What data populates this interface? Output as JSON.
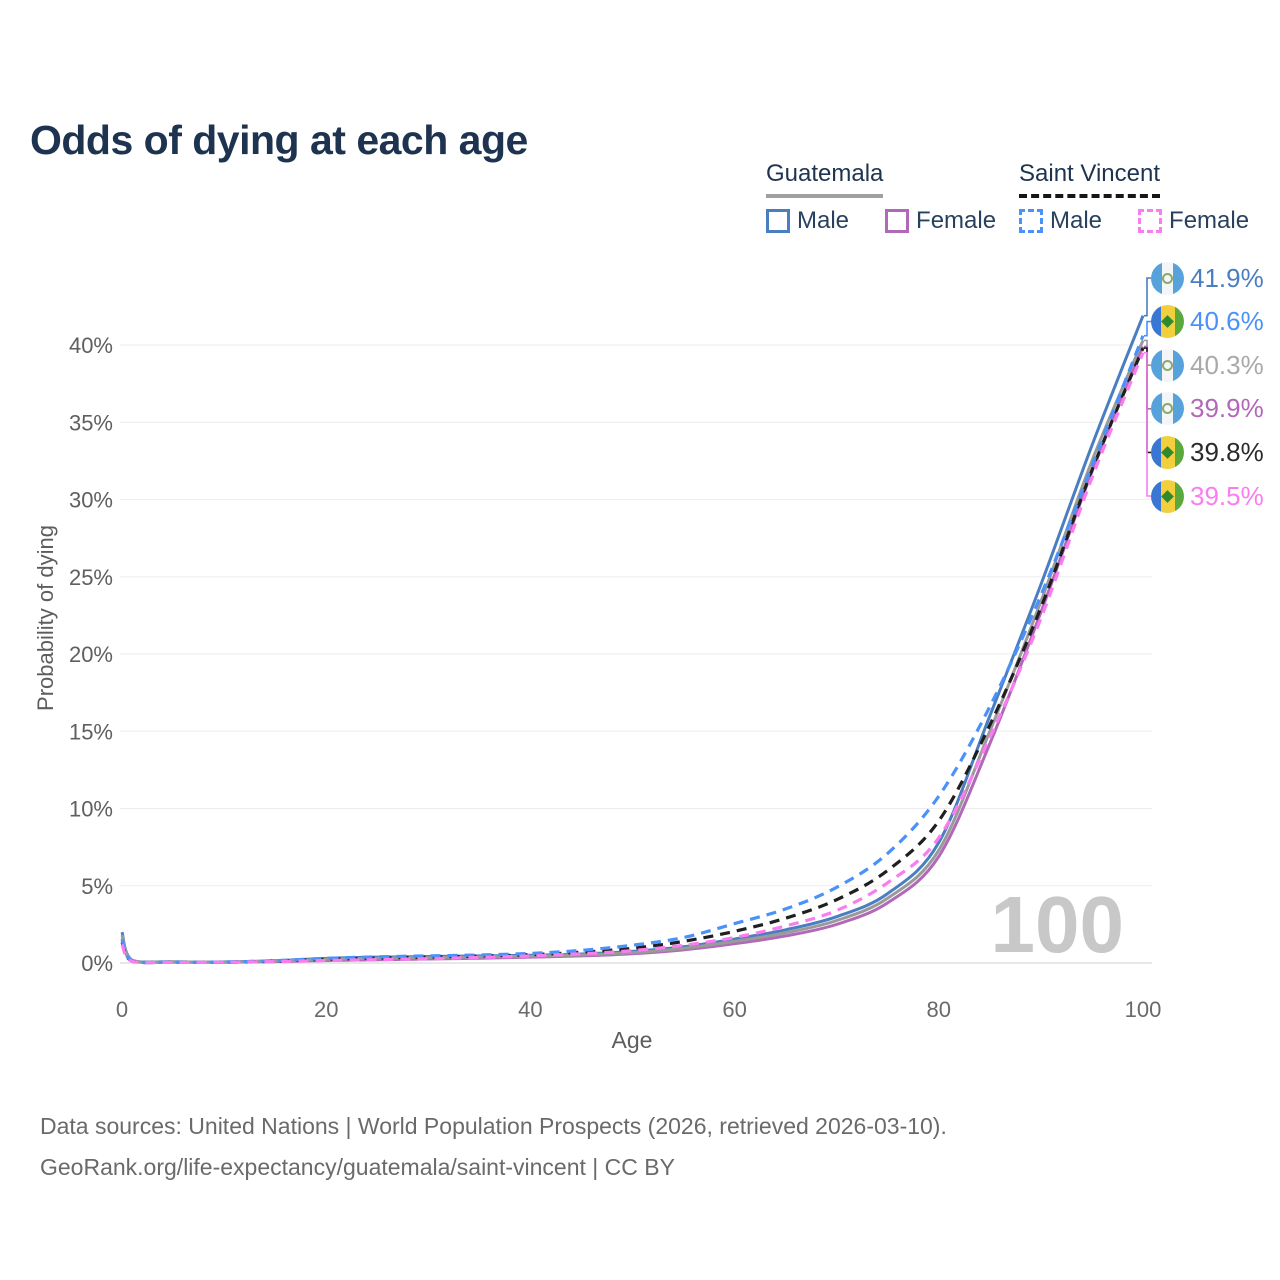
{
  "title": "Odds of dying at each age",
  "watermark": "100",
  "legend": {
    "groups": [
      {
        "label": "Guatemala",
        "line_style": "solid",
        "underline_color": "#a0a0a0",
        "items": [
          {
            "label": "Male",
            "color": "#4a7ec0"
          },
          {
            "label": "Female",
            "color": "#b168b8"
          }
        ]
      },
      {
        "label": "Saint Vincent",
        "line_style": "dashed",
        "underline_color": "#161616",
        "items": [
          {
            "label": "Male",
            "color": "#4a91fa"
          },
          {
            "label": "Female",
            "color": "#fa7df0"
          }
        ]
      }
    ]
  },
  "footer": {
    "line1": "Data sources: United Nations | World Population Prospects (2026, retrieved 2026-03-10).",
    "line2": "GeoRank.org/life-expectancy/guatemala/saint-vincent | CC BY"
  },
  "chart_data": {
    "type": "line",
    "title": "Odds of dying at each age",
    "xlabel": "Age",
    "ylabel": "Probability of dying",
    "xlim": [
      0,
      100
    ],
    "ylim": [
      0,
      43
    ],
    "x_ticks": [
      0,
      20,
      40,
      60,
      80,
      100
    ],
    "y_ticks": [
      0,
      5,
      10,
      15,
      20,
      25,
      30,
      35,
      40
    ],
    "y_tick_suffix": "%",
    "grid": "horizontal",
    "legend_position": "top-right",
    "x": [
      0,
      1,
      5,
      10,
      15,
      20,
      25,
      30,
      35,
      40,
      45,
      50,
      55,
      60,
      65,
      70,
      75,
      80,
      85,
      90,
      95,
      100
    ],
    "series": [
      {
        "id": "guatemala-female",
        "name": "Guatemala Female",
        "country": "guatemala",
        "sex": "female",
        "style": "solid",
        "color": "#b168b8",
        "values": [
          1.6,
          0.14,
          0.06,
          0.05,
          0.09,
          0.16,
          0.21,
          0.26,
          0.31,
          0.38,
          0.46,
          0.6,
          0.85,
          1.25,
          1.75,
          2.5,
          3.9,
          6.9,
          14.2,
          22.7,
          31.8,
          39.9
        ]
      },
      {
        "id": "guatemala-male",
        "name": "Guatemala Male",
        "country": "guatemala",
        "sex": "male",
        "style": "solid",
        "color": "#4a7ec0",
        "values": [
          2.0,
          0.18,
          0.08,
          0.07,
          0.15,
          0.3,
          0.38,
          0.42,
          0.46,
          0.5,
          0.58,
          0.75,
          1.05,
          1.55,
          2.15,
          3.0,
          4.5,
          7.8,
          16.0,
          24.5,
          33.5,
          41.9
        ]
      },
      {
        "id": "guatemala-overall",
        "name": "Guatemala Overall",
        "country": "guatemala",
        "sex": "all",
        "style": "solid",
        "color": "#9a9a9a",
        "values": [
          1.8,
          0.16,
          0.07,
          0.06,
          0.12,
          0.24,
          0.31,
          0.35,
          0.39,
          0.44,
          0.52,
          0.67,
          0.95,
          1.4,
          1.95,
          2.75,
          4.2,
          7.3,
          15.0,
          23.4,
          32.5,
          40.3
        ]
      },
      {
        "id": "saint-vincent-overall",
        "name": "Saint Vincent Overall",
        "country": "saint-vincent",
        "sex": "all",
        "style": "dashed",
        "color": "#1f1f1f",
        "values": [
          1.35,
          0.11,
          0.05,
          0.05,
          0.12,
          0.24,
          0.32,
          0.38,
          0.45,
          0.54,
          0.7,
          0.95,
          1.4,
          2.05,
          2.9,
          4.1,
          6.0,
          9.2,
          15.4,
          23.0,
          31.9,
          39.8
        ]
      },
      {
        "id": "saint-vincent-male",
        "name": "Saint Vincent Male",
        "country": "saint-vincent",
        "sex": "male",
        "style": "dashed",
        "color": "#4a91fa",
        "values": [
          1.5,
          0.12,
          0.05,
          0.06,
          0.15,
          0.3,
          0.4,
          0.46,
          0.52,
          0.62,
          0.82,
          1.15,
          1.65,
          2.55,
          3.5,
          4.9,
          7.1,
          10.8,
          16.6,
          23.8,
          32.2,
          40.6
        ]
      },
      {
        "id": "saint-vincent-female",
        "name": "Saint Vincent Female",
        "country": "saint-vincent",
        "sex": "female",
        "style": "dashed",
        "color": "#fa7df0",
        "values": [
          1.2,
          0.1,
          0.04,
          0.05,
          0.09,
          0.16,
          0.22,
          0.28,
          0.36,
          0.46,
          0.6,
          0.8,
          1.15,
          1.65,
          2.4,
          3.4,
          5.2,
          8.1,
          14.6,
          22.3,
          31.4,
          39.5
        ]
      }
    ],
    "end_labels": [
      {
        "series": "guatemala-male",
        "text": "41.9%",
        "value": 41.9,
        "color": "#4a7ec0"
      },
      {
        "series": "saint-vincent-male",
        "text": "40.6%",
        "value": 40.6,
        "color": "#4a91fa"
      },
      {
        "series": "guatemala-overall",
        "text": "40.3%",
        "value": 40.3,
        "color": "#a9a9a9"
      },
      {
        "series": "guatemala-female",
        "text": "39.9%",
        "value": 39.9,
        "color": "#b168b8"
      },
      {
        "series": "saint-vincent-overall",
        "text": "39.8%",
        "value": 39.8,
        "color": "#2a2a2a"
      },
      {
        "series": "saint-vincent-female",
        "text": "39.5%",
        "value": 39.5,
        "color": "#fa7df0"
      }
    ]
  }
}
